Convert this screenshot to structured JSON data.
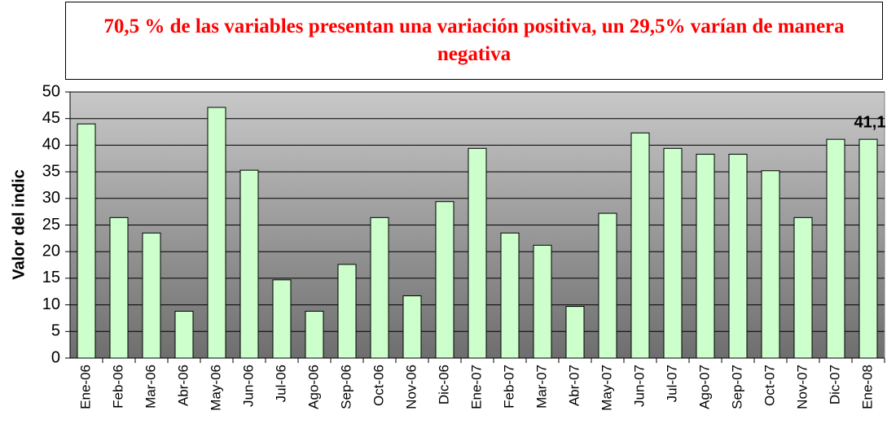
{
  "chart_data": {
    "type": "bar",
    "title": "70,5 % de las variables presentan una variación positiva, un 29,5% varían de manera negativa",
    "y_label": "Valor del indic",
    "categories": [
      "Ene-06",
      "Feb-06",
      "Mar-06",
      "Abr-06",
      "May-06",
      "Jun-06",
      "Jul-06",
      "Ago-06",
      "Sep-06",
      "Oct-06",
      "Nov-06",
      "Dic-06",
      "Ene-07",
      "Feb-07",
      "Mar-07",
      "Abr-07",
      "May-07",
      "Jun-07",
      "Jul-07",
      "Ago-07",
      "Sep-07",
      "Oct-07",
      "Nov-07",
      "Dic-07",
      "Ene-08"
    ],
    "values": [
      44,
      26.4,
      23.5,
      8.8,
      47.1,
      35.3,
      14.7,
      8.8,
      17.6,
      26.4,
      11.7,
      29.4,
      39.4,
      23.5,
      21.2,
      9.7,
      27.2,
      42.3,
      39.4,
      38.3,
      38.3,
      35.2,
      26.4,
      41.1,
      41.1
    ],
    "value_labels": [
      null,
      null,
      null,
      null,
      null,
      null,
      null,
      null,
      null,
      null,
      null,
      null,
      null,
      null,
      null,
      null,
      null,
      null,
      null,
      null,
      null,
      null,
      null,
      null,
      "41,1"
    ],
    "color": "#ccffcc",
    "ylim": [
      0,
      50
    ],
    "yticks": [
      0,
      5,
      10,
      15,
      20,
      25,
      30,
      35,
      40,
      45,
      50
    ],
    "grid": true
  }
}
